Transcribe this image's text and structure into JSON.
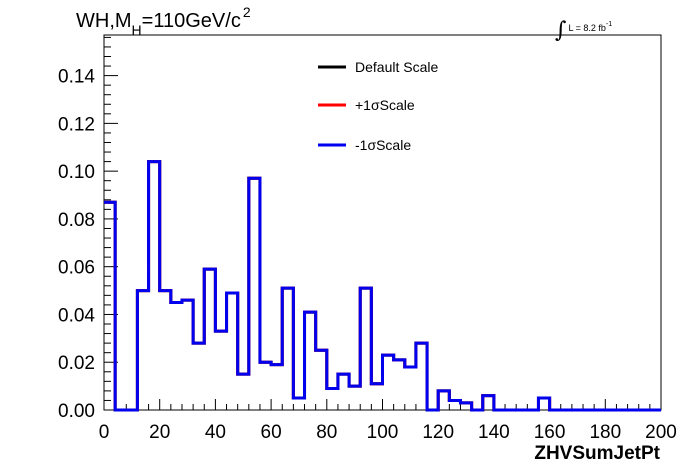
{
  "title": {
    "main_prefix": "WH,M",
    "main_sub": "H",
    "main_suffix": "=110GeV/c",
    "main_sup": "2"
  },
  "lumi": {
    "integral": "∫",
    "text": "L = 8.2 fb",
    "sup": "-1"
  },
  "chart_data": {
    "type": "step",
    "xlabel": "ZHVSumJetPt",
    "ylabel": "",
    "xlim": [
      0,
      200
    ],
    "ylim": [
      0,
      0.157
    ],
    "xticks": [
      0,
      20,
      40,
      60,
      80,
      100,
      120,
      140,
      160,
      180,
      200
    ],
    "xtick_labels": [
      "0",
      "20",
      "40",
      "60",
      "80",
      "100",
      "120",
      "140",
      "160",
      "180",
      "200"
    ],
    "yticks": [
      0,
      0.02,
      0.04,
      0.06,
      0.08,
      0.1,
      0.12,
      0.14
    ],
    "ytick_labels": [
      "0.00",
      "0.02",
      "0.04",
      "0.06",
      "0.08",
      "0.10",
      "0.12",
      "0.14"
    ],
    "bin_width": 4,
    "bin_edges": [
      0,
      4,
      8,
      12,
      16,
      20,
      24,
      28,
      32,
      36,
      40,
      44,
      48,
      52,
      56,
      60,
      64,
      68,
      72,
      76,
      80,
      84,
      88,
      92,
      96,
      100,
      104,
      108,
      112,
      116,
      120,
      124,
      128,
      132,
      136,
      140,
      144,
      148,
      152,
      156,
      160,
      164,
      168,
      172,
      176,
      180,
      184,
      188,
      192,
      196,
      200
    ],
    "series": [
      {
        "name": "Default Scale",
        "color": "#000000",
        "values": [
          0.087,
          0,
          0,
          0.05,
          0.104,
          0.05,
          0.045,
          0.046,
          0.028,
          0.059,
          0.033,
          0.049,
          0.015,
          0.097,
          0.02,
          0.019,
          0.051,
          0.005,
          0.041,
          0.025,
          0.009,
          0.015,
          0.01,
          0.051,
          0.011,
          0.023,
          0.021,
          0.018,
          0.028,
          0,
          0.008,
          0.004,
          0.003,
          0,
          0.006,
          0,
          0,
          0,
          0,
          0.005,
          0,
          0,
          0,
          0,
          0,
          0,
          0,
          0,
          0,
          0
        ]
      },
      {
        "name": "+1σScale",
        "color": "#ff0000",
        "values": [
          0.087,
          0,
          0,
          0.05,
          0.104,
          0.05,
          0.045,
          0.046,
          0.028,
          0.059,
          0.033,
          0.049,
          0.015,
          0.097,
          0.02,
          0.019,
          0.051,
          0.005,
          0.041,
          0.025,
          0.009,
          0.015,
          0.01,
          0.051,
          0.011,
          0.023,
          0.021,
          0.018,
          0.028,
          0,
          0.008,
          0.004,
          0.003,
          0,
          0.006,
          0,
          0,
          0,
          0,
          0.005,
          0,
          0,
          0,
          0,
          0,
          0,
          0,
          0,
          0,
          0
        ]
      },
      {
        "name": "-1σScale",
        "color": "#0000ee",
        "values": [
          0.087,
          0,
          0,
          0.05,
          0.104,
          0.05,
          0.045,
          0.046,
          0.028,
          0.059,
          0.033,
          0.049,
          0.015,
          0.097,
          0.02,
          0.019,
          0.051,
          0.005,
          0.041,
          0.025,
          0.009,
          0.015,
          0.01,
          0.051,
          0.011,
          0.023,
          0.021,
          0.018,
          0.028,
          0,
          0.008,
          0.004,
          0.003,
          0,
          0.006,
          0,
          0,
          0,
          0,
          0.005,
          0,
          0,
          0,
          0,
          0,
          0,
          0,
          0,
          0,
          0
        ]
      }
    ],
    "legend_position": "top-center",
    "grid": false
  }
}
